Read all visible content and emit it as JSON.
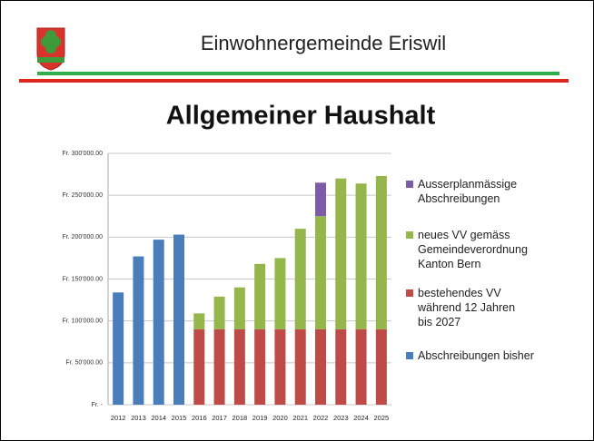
{
  "header": {
    "title": "Einwohnergemeinde Eriswil"
  },
  "chart_data": {
    "type": "bar",
    "stacked": true,
    "title": "Allgemeiner Haushalt",
    "categories": [
      "2012",
      "2013",
      "2014",
      "2015",
      "2016",
      "2017",
      "2018",
      "2019",
      "2020",
      "2021",
      "2022",
      "2023",
      "2024",
      "2025"
    ],
    "series": [
      {
        "name": "Ausserplanmässige Abschreibungen",
        "color": "#7e5ba8",
        "values": [
          null,
          null,
          null,
          null,
          null,
          null,
          null,
          null,
          null,
          null,
          40000,
          null,
          null,
          null
        ]
      },
      {
        "name": "neues VV gemäss Gemeindeverordnung Kanton Bern",
        "color": "#94b64a",
        "values": [
          null,
          null,
          null,
          null,
          19000,
          39000,
          50000,
          78000,
          85000,
          120000,
          135000,
          180000,
          174000,
          183000
        ]
      },
      {
        "name": "bestehendes VV während 12 Jahren bis 2027",
        "color": "#be4b48",
        "values": [
          null,
          null,
          null,
          null,
          90000,
          90000,
          90000,
          90000,
          90000,
          90000,
          90000,
          90000,
          90000,
          90000
        ]
      },
      {
        "name": "Abschreibungen bisher",
        "color": "#4a7ebb",
        "values": [
          134000,
          177000,
          197000,
          203000,
          null,
          null,
          null,
          null,
          null,
          null,
          null,
          null,
          null,
          null
        ]
      }
    ],
    "ylim": [
      0,
      300000
    ],
    "yticks": [
      {
        "value": 0,
        "label": "Fr. -"
      },
      {
        "value": 50000,
        "label": "Fr. 50'000.00"
      },
      {
        "value": 100000,
        "label": "Fr. 100'000.00"
      },
      {
        "value": 150000,
        "label": "Fr. 150'000.00"
      },
      {
        "value": 200000,
        "label": "Fr. 200'000.00"
      },
      {
        "value": 250000,
        "label": "Fr. 250'000.00"
      },
      {
        "value": 300000,
        "label": "Fr. 300'000.00"
      }
    ],
    "grid": true,
    "legend": "right"
  }
}
